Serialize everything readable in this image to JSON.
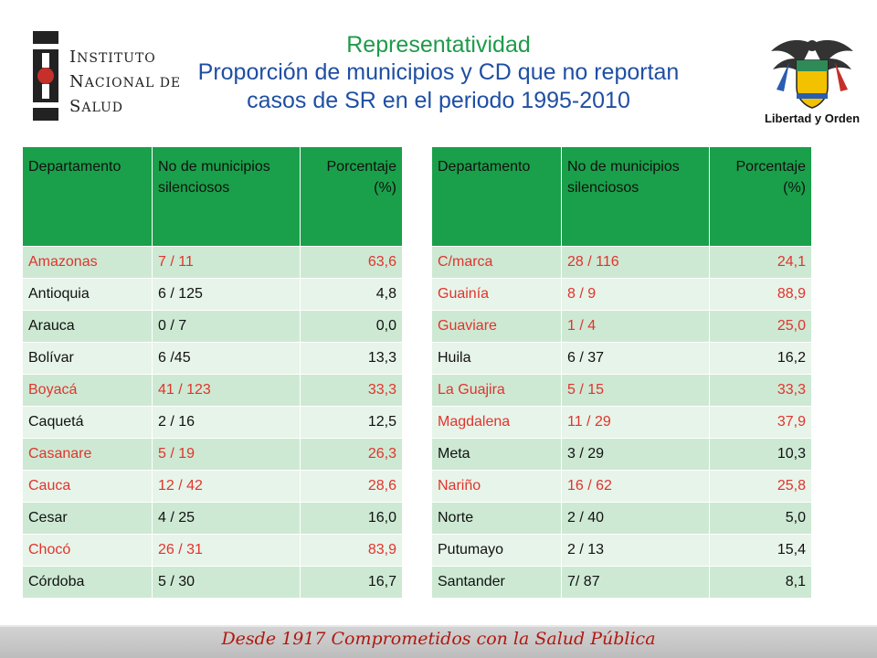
{
  "title": {
    "line1": "Representatividad",
    "line2": "Proporción de municipios y CD que no reportan",
    "line3": "casos de SR en el periodo 1995-2010"
  },
  "logo_left": {
    "line1_cap": "I",
    "line1_rest": "NSTITUTO",
    "line2_cap": "N",
    "line2_rest": "ACIONAL DE",
    "line3_cap": "S",
    "line3_rest": "ALUD"
  },
  "crest": {
    "motto": "Libertad y Orden"
  },
  "headers": {
    "departamento": "Departamento",
    "municipios": "No de municipios silenciosos",
    "porcentaje": "Porcentaje (%)"
  },
  "left_rows": [
    {
      "dept": "Amazonas",
      "mun": "7 / 11",
      "pct": "63,6",
      "hl": true
    },
    {
      "dept": "Antioquia",
      "mun": "6 / 125",
      "pct": "4,8",
      "hl": false
    },
    {
      "dept": "Arauca",
      "mun": "0 / 7",
      "pct": "0,0",
      "hl": false
    },
    {
      "dept": "Bolívar",
      "mun": "6 /45",
      "pct": "13,3",
      "hl": false
    },
    {
      "dept": "Boyacá",
      "mun": "41 / 123",
      "pct": "33,3",
      "hl": true
    },
    {
      "dept": "Caquetá",
      "mun": "2 / 16",
      "pct": "12,5",
      "hl": false
    },
    {
      "dept": "Casanare",
      "mun": "5 / 19",
      "pct": "26,3",
      "hl": true
    },
    {
      "dept": "Cauca",
      "mun": "12 / 42",
      "pct": "28,6",
      "hl": true
    },
    {
      "dept": "Cesar",
      "mun": "4 / 25",
      "pct": "16,0",
      "hl": false
    },
    {
      "dept": "Chocó",
      "mun": "26 / 31",
      "pct": "83,9",
      "hl": true
    },
    {
      "dept": "Córdoba",
      "mun": "5 / 30",
      "pct": "16,7",
      "hl": false
    }
  ],
  "right_rows": [
    {
      "dept": "C/marca",
      "mun": "28 / 116",
      "pct": "24,1",
      "hl": true
    },
    {
      "dept": "Guainía",
      "mun": "8 / 9",
      "pct": "88,9",
      "hl": true
    },
    {
      "dept": "Guaviare",
      "mun": "1 / 4",
      "pct": "25,0",
      "hl": true
    },
    {
      "dept": "Huila",
      "mun": "6 / 37",
      "pct": "16,2",
      "hl": false
    },
    {
      "dept": "La Guajira",
      "mun": "5 / 15",
      "pct": "33,3",
      "hl": true
    },
    {
      "dept": "Magdalena",
      "mun": "11 / 29",
      "pct": "37,9",
      "hl": true
    },
    {
      "dept": "Meta",
      "mun": "3 / 29",
      "pct": "10,3",
      "hl": false
    },
    {
      "dept": "Nariño",
      "mun": "16 / 62",
      "pct": "25,8",
      "hl": true
    },
    {
      "dept": "Norte",
      "mun": "2 / 40",
      "pct": "5,0",
      "hl": false
    },
    {
      "dept": "Putumayo",
      "mun": "2 / 13",
      "pct": "15,4",
      "hl": false
    },
    {
      "dept": "Santander",
      "mun": "7/  87",
      "pct": "8,1",
      "hl": false
    }
  ],
  "footer": {
    "text": "Desde 1917 Comprometidos con la Salud Pública"
  },
  "colors": {
    "header_green": "#1aa04a",
    "highlight_red": "#e2332c",
    "title_green": "#1e9a4a",
    "title_blue": "#1f4fa3"
  }
}
